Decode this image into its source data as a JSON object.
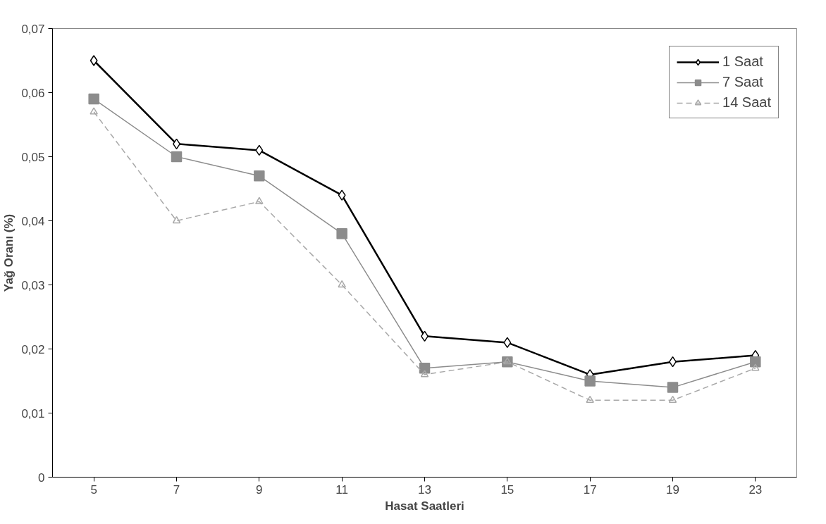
{
  "chart_data": {
    "type": "line",
    "xlabel": "Hasat Saatleri",
    "ylabel": "Yağ Oranı (%)",
    "categories": [
      "5",
      "7",
      "9",
      "11",
      "13",
      "15",
      "17",
      "19",
      "23"
    ],
    "series": [
      {
        "name": "1 Saat",
        "color": "#000000",
        "marker": "diamond",
        "line_style": "solid",
        "values": [
          0.065,
          0.052,
          0.051,
          0.044,
          0.022,
          0.021,
          0.016,
          0.018,
          0.019
        ]
      },
      {
        "name": "7 Saat",
        "color": "#8c8c8c",
        "marker": "square",
        "line_style": "solid",
        "values": [
          0.059,
          0.05,
          0.047,
          0.038,
          0.017,
          0.018,
          0.015,
          0.014,
          0.018
        ]
      },
      {
        "name": "14 Saat",
        "color": "#a8a8a8",
        "marker": "triangle",
        "line_style": "dashed",
        "values": [
          0.057,
          0.04,
          0.043,
          0.03,
          0.016,
          0.018,
          0.012,
          0.012,
          0.017
        ]
      }
    ],
    "ylim": [
      0,
      0.07
    ],
    "yticks": [
      0,
      {
        "value": 0.01,
        "label": "0,01"
      },
      {
        "value": 0.02,
        "label": "0,02"
      },
      {
        "value": 0.03,
        "label": "0,03"
      },
      {
        "value": 0.04,
        "label": "0,04"
      },
      {
        "value": 0.05,
        "label": "0,05"
      },
      {
        "value": 0.06,
        "label": "0,06"
      },
      {
        "value": 0.07,
        "label": "0,07"
      }
    ],
    "grid": false,
    "legend": "top right"
  }
}
